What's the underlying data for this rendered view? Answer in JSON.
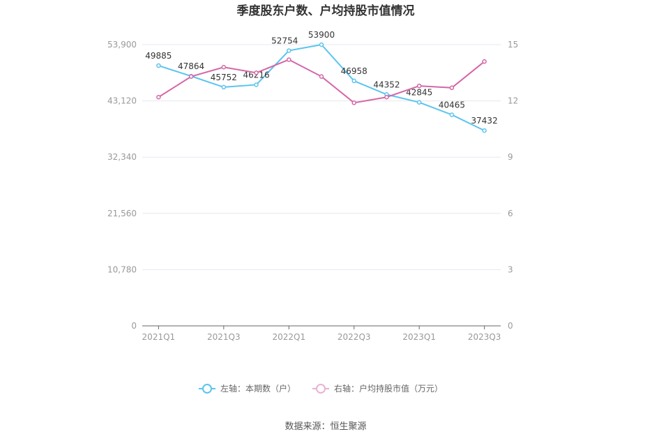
{
  "chart_data": {
    "type": "line",
    "title": "季度股东户数、户均持股市值情况",
    "categories": [
      "2021Q1",
      "2021Q2",
      "2021Q3",
      "2021Q4",
      "2022Q1",
      "2022Q2",
      "2022Q3",
      "2022Q4",
      "2023Q1",
      "2023Q2",
      "2023Q3"
    ],
    "x_tick_labels": [
      "2021Q1",
      "2021Q3",
      "2022Q1",
      "2022Q3",
      "2023Q1",
      "2023Q3"
    ],
    "left_axis": {
      "ticks": [
        "0",
        "10,780",
        "21,560",
        "32,340",
        "43,120",
        "53,900"
      ],
      "range": [
        0,
        53900
      ]
    },
    "right_axis": {
      "ticks": [
        "0",
        "3",
        "6",
        "9",
        "12",
        "15"
      ],
      "range": [
        0,
        15
      ]
    },
    "series": [
      {
        "name": "左轴：本期数（户）",
        "axis": "left",
        "color": "#5bc4ef",
        "values": [
          49885,
          47864,
          45752,
          46216,
          52754,
          53900,
          46958,
          44352,
          42845,
          40465,
          37432
        ],
        "labels": [
          "49885",
          "47864",
          "45752",
          "46216",
          "52754",
          "53900",
          "46958",
          "44352",
          "42845",
          "40465",
          "37432"
        ]
      },
      {
        "name": "右轴：户均持股市值（万元）",
        "axis": "right",
        "color": "#d467a7",
        "values": [
          12.2,
          13.3,
          13.8,
          13.5,
          14.2,
          13.3,
          11.9,
          12.2,
          12.8,
          12.7,
          14.1
        ]
      }
    ],
    "grid": true,
    "legend_position": "bottom"
  },
  "source_text": "数据来源：恒生聚源"
}
